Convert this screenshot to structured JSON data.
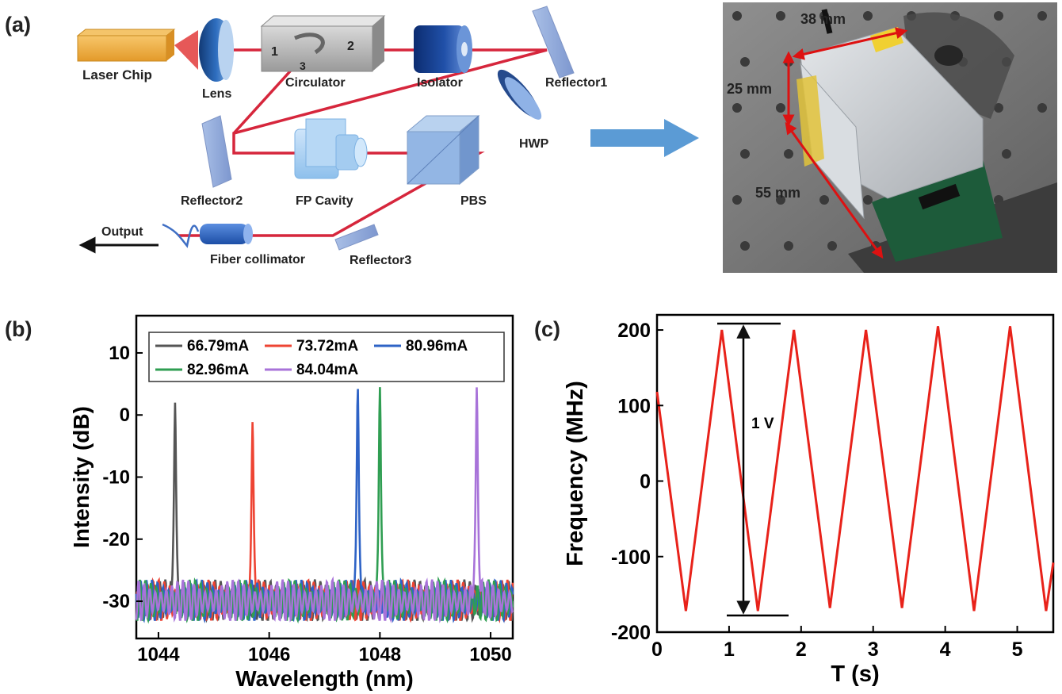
{
  "panels": {
    "a": "(a)",
    "b": "(b)",
    "c": "(c)"
  },
  "schematic": {
    "laser_chip": "Laser Chip",
    "lens": "Lens",
    "circulator": "Circulator",
    "port1": "1",
    "port2": "2",
    "port3": "3",
    "isolator": "Isolator",
    "reflector1": "Reflector1",
    "hwp": "HWP",
    "reflector2": "Reflector2",
    "fp_cavity": "FP Cavity",
    "pbs": "PBS",
    "output": "Output",
    "fiber_collimator": "Fiber collimator",
    "reflector3": "Reflector3"
  },
  "photo": {
    "dim_width": "38 mm",
    "dim_height": "25 mm",
    "dim_length": "55 mm"
  },
  "colors": {
    "beam": "#d6263c",
    "arrow": "#5b9bd5",
    "black": "#555555",
    "red": "#ee4433",
    "blue": "#2e63c6",
    "green": "#2f9e52",
    "purple": "#a873d9"
  },
  "chart_data": [
    {
      "type": "line",
      "xlabel": "Wavelength (nm)",
      "ylabel": "Intensity (dB)",
      "xlim": [
        1043.6,
        1050.4
      ],
      "ylim": [
        -36,
        16
      ],
      "xticks": [
        1044,
        1046,
        1048,
        1050
      ],
      "yticks": [
        10,
        0,
        -10,
        -20,
        -30
      ],
      "legend_position": "top",
      "series": [
        {
          "name": "66.79mA",
          "peak_wavelength": 1044.3,
          "peak_intensity": 2,
          "color": "#555555"
        },
        {
          "name": "73.72mA",
          "peak_wavelength": 1045.7,
          "peak_intensity": -1,
          "color": "#ee4433"
        },
        {
          "name": "80.96mA",
          "peak_wavelength": 1047.6,
          "peak_intensity": 4.5,
          "color": "#2e63c6"
        },
        {
          "name": "82.96mA",
          "peak_wavelength": 1048.0,
          "peak_intensity": 4.5,
          "color": "#2f9e52"
        },
        {
          "name": "84.04mA",
          "peak_wavelength": 1049.75,
          "peak_intensity": 4.5,
          "color": "#a873d9"
        }
      ],
      "noise_floor": [
        -33,
        -26
      ]
    },
    {
      "type": "line",
      "xlabel": "T (s)",
      "ylabel": "Frequency (MHz)",
      "xlim": [
        0,
        5.5
      ],
      "ylim": [
        -200,
        220
      ],
      "xticks": [
        0,
        1,
        2,
        3,
        4,
        5
      ],
      "yticks": [
        200,
        100,
        0,
        -100,
        -200
      ],
      "annotation": "1 V",
      "series": [
        {
          "color": "#e8221a",
          "x": [
            0,
            0.4,
            0.9,
            1.4,
            1.9,
            2.4,
            2.9,
            3.4,
            3.9,
            4.4,
            4.9,
            5.4,
            5.5
          ],
          "y": [
            118,
            -172,
            200,
            -172,
            200,
            -168,
            200,
            -168,
            205,
            -172,
            205,
            -172,
            -108
          ]
        }
      ]
    }
  ]
}
